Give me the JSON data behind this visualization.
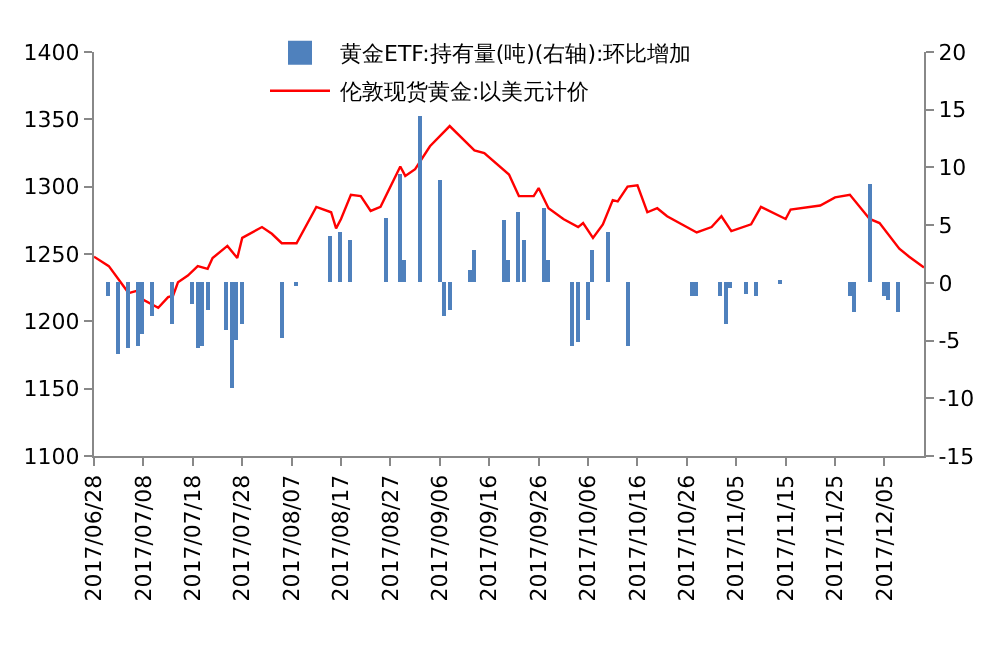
{
  "chart_data": {
    "type": "line",
    "series": [
      {
        "name": "黄金ETF:持有量(吨)(右轴):环比增加",
        "type": "bar",
        "axis": "y2",
        "color": "#4f81bd",
        "x": [
          "2017-07-01",
          "2017-07-03",
          "2017-07-05",
          "2017-07-07",
          "2017-07-08",
          "2017-07-10",
          "2017-07-14",
          "2017-07-18",
          "2017-07-19",
          "2017-07-20",
          "2017-07-21",
          "2017-07-25",
          "2017-07-26",
          "2017-07-27",
          "2017-07-28",
          "2017-08-05",
          "2017-08-08",
          "2017-08-15",
          "2017-08-17",
          "2017-08-19",
          "2017-08-26",
          "2017-08-29",
          "2017-08-30",
          "2017-09-02",
          "2017-09-06",
          "2017-09-07",
          "2017-09-08",
          "2017-09-12",
          "2017-09-13",
          "2017-09-19",
          "2017-09-20",
          "2017-09-22",
          "2017-09-23",
          "2017-09-27",
          "2017-09-28",
          "2017-10-03",
          "2017-10-04",
          "2017-10-06",
          "2017-10-07",
          "2017-10-10",
          "2017-10-14",
          "2017-10-27",
          "2017-10-28",
          "2017-11-02",
          "2017-11-03",
          "2017-11-04",
          "2017-11-07",
          "2017-11-09",
          "2017-11-14",
          "2017-11-28",
          "2017-11-29",
          "2017-12-02",
          "2017-12-05",
          "2017-12-06",
          "2017-12-08"
        ],
        "values": [
          -1.2,
          -6.1,
          -5.7,
          -5.4,
          -4.5,
          -2.9,
          -3.6,
          -1.8,
          -5.7,
          -5.4,
          -2.3,
          -4.1,
          -9.1,
          -5.0,
          -3.6,
          -4.7,
          -0.3,
          4.0,
          4.4,
          3.7,
          5.7,
          9.5,
          1.9,
          14.5,
          8.9,
          -2.9,
          -2.4,
          1.1,
          2.9,
          5.4,
          1.9,
          6.1,
          3.7,
          6.5,
          1.9,
          -5.4,
          -5.1,
          -3.3,
          2.9,
          4.4,
          -5.4,
          -1.2,
          -1.2,
          -1.2,
          -3.6,
          -0.4,
          -1.0,
          -1.2,
          0.1,
          -1.2,
          -2.6,
          8.5,
          -1.2,
          -1.5,
          -2.6
        ]
      },
      {
        "name": "伦敦现货黄金:以美元计价",
        "color": "#ff0000",
        "x": [
          "2017-06-28",
          "2017-07-01",
          "2017-07-05",
          "2017-07-07",
          "2017-07-08",
          "2017-07-11",
          "2017-07-13",
          "2017-07-14",
          "2017-07-15",
          "2017-07-17",
          "2017-07-19",
          "2017-07-21",
          "2017-07-22",
          "2017-07-25",
          "2017-07-27",
          "2017-07-28",
          "2017-08-01",
          "2017-08-03",
          "2017-08-05",
          "2017-08-08",
          "2017-08-12",
          "2017-08-15",
          "2017-08-16",
          "2017-08-17",
          "2017-08-19",
          "2017-08-21",
          "2017-08-23",
          "2017-08-25",
          "2017-08-29",
          "2017-08-30",
          "2017-09-01",
          "2017-09-04",
          "2017-09-08",
          "2017-09-13",
          "2017-09-15",
          "2017-09-20",
          "2017-09-22",
          "2017-09-25",
          "2017-09-26",
          "2017-09-28",
          "2017-10-01",
          "2017-10-04",
          "2017-10-05",
          "2017-10-07",
          "2017-10-09",
          "2017-10-11",
          "2017-10-12",
          "2017-10-14",
          "2017-10-16",
          "2017-10-18",
          "2017-10-20",
          "2017-10-22",
          "2017-10-28",
          "2017-10-31",
          "2017-11-02",
          "2017-11-04",
          "2017-11-08",
          "2017-11-10",
          "2017-11-15",
          "2017-11-16",
          "2017-11-22",
          "2017-11-25",
          "2017-11-28",
          "2017-12-02",
          "2017-12-04",
          "2017-12-08",
          "2017-12-10",
          "2017-12-13"
        ],
        "values": [
          1248,
          1241,
          1221,
          1223,
          1216,
          1210,
          1218,
          1219,
          1229,
          1234,
          1241,
          1239,
          1247,
          1256,
          1247,
          1262,
          1270,
          1265,
          1258,
          1258,
          1285,
          1281,
          1269,
          1276,
          1294,
          1293,
          1282,
          1285,
          1315,
          1308,
          1313,
          1330,
          1345,
          1327,
          1325,
          1309,
          1293,
          1293,
          1299,
          1284,
          1276,
          1270,
          1273,
          1262,
          1272,
          1290,
          1289,
          1300,
          1301,
          1281,
          1284,
          1278,
          1266,
          1270,
          1278,
          1267,
          1272,
          1285,
          1276,
          1283,
          1286,
          1292,
          1294,
          1276,
          1273,
          1254,
          1248,
          1240
        ]
      }
    ],
    "xlim": [
      "2017-06-28",
      "2017-12-13"
    ],
    "xticks": [
      {
        "value": "2017-06-28",
        "label": "2017/06/28"
      },
      {
        "value": "2017-07-08",
        "label": "2017/07/08"
      },
      {
        "value": "2017-07-18",
        "label": "2017/07/18"
      },
      {
        "value": "2017-07-28",
        "label": "2017/07/28"
      },
      {
        "value": "2017-08-07",
        "label": "2017/08/07"
      },
      {
        "value": "2017-08-17",
        "label": "2017/08/17"
      },
      {
        "value": "2017-08-27",
        "label": "2017/08/27"
      },
      {
        "value": "2017-09-06",
        "label": "2017/09/06"
      },
      {
        "value": "2017-09-16",
        "label": "2017/09/16"
      },
      {
        "value": "2017-09-26",
        "label": "2017/09/26"
      },
      {
        "value": "2017-10-06",
        "label": "2017/10/06"
      },
      {
        "value": "2017-10-16",
        "label": "2017/10/16"
      },
      {
        "value": "2017-10-26",
        "label": "2017/10/26"
      },
      {
        "value": "2017-11-05",
        "label": "2017/11/05"
      },
      {
        "value": "2017-11-15",
        "label": "2017/11/15"
      },
      {
        "value": "2017-11-25",
        "label": "2017/11/25"
      },
      {
        "value": "2017-12-05",
        "label": "2017/12/05"
      }
    ],
    "ylim": [
      1100,
      1400
    ],
    "yticks": [
      1100,
      1150,
      1200,
      1250,
      1300,
      1350,
      1400
    ],
    "y2lim": [
      -15,
      20
    ],
    "y2ticks": [
      -15,
      -10,
      -5,
      0,
      5,
      10,
      15,
      20
    ],
    "legend": "top",
    "grid": false,
    "marker": "none",
    "line_style": "solid"
  }
}
